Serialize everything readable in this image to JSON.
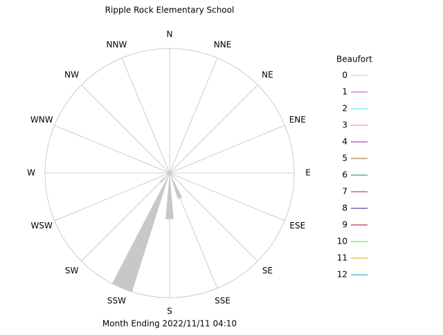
{
  "chart_data": {
    "type": "windrose",
    "title": "Ripple Rock Elementary School",
    "subtitle": "Month Ending 2022/11/11 04:10",
    "legend_title": "Beaufort",
    "categories": [
      "N",
      "NNE",
      "NE",
      "ENE",
      "E",
      "ESE",
      "SE",
      "SSE",
      "S",
      "SSW",
      "SW",
      "WSW",
      "W",
      "WNW",
      "NW",
      "NNW"
    ],
    "rlim": [
      0,
      100
    ],
    "series": [
      {
        "name": "0",
        "color": "#c8c8c8",
        "values": [
          0,
          0,
          0,
          0,
          0,
          3,
          5,
          22,
          37,
          100,
          10,
          3,
          0,
          0,
          0,
          0
        ]
      },
      {
        "name": "1",
        "color": "#c040c0",
        "values": [
          0,
          0,
          0,
          0,
          0,
          0,
          0,
          0,
          0,
          0,
          0,
          0,
          0,
          0,
          0,
          0
        ]
      },
      {
        "name": "2",
        "color": "#40e0e0",
        "values": [
          0,
          0,
          0,
          0,
          0,
          0,
          0,
          0,
          0,
          0,
          0,
          0,
          0,
          0,
          0,
          0
        ]
      },
      {
        "name": "3",
        "color": "#e080c0",
        "values": [
          0,
          0,
          0,
          0,
          0,
          0,
          0,
          0,
          0,
          0,
          0,
          0,
          0,
          0,
          0,
          0
        ]
      },
      {
        "name": "4",
        "color": "#8020a0",
        "values": [
          0,
          0,
          0,
          0,
          0,
          0,
          0,
          0,
          0,
          0,
          0,
          0,
          0,
          0,
          0,
          0
        ]
      },
      {
        "name": "5",
        "color": "#a06020",
        "values": [
          0,
          0,
          0,
          0,
          0,
          0,
          0,
          0,
          0,
          0,
          0,
          0,
          0,
          0,
          0,
          0
        ]
      },
      {
        "name": "6",
        "color": "#008080",
        "values": [
          0,
          0,
          0,
          0,
          0,
          0,
          0,
          0,
          0,
          0,
          0,
          0,
          0,
          0,
          0,
          0
        ]
      },
      {
        "name": "7",
        "color": "#a02020",
        "values": [
          0,
          0,
          0,
          0,
          0,
          0,
          0,
          0,
          0,
          0,
          0,
          0,
          0,
          0,
          0,
          0
        ]
      },
      {
        "name": "8",
        "color": "#202080",
        "values": [
          0,
          0,
          0,
          0,
          0,
          0,
          0,
          0,
          0,
          0,
          0,
          0,
          0,
          0,
          0,
          0
        ]
      },
      {
        "name": "9",
        "color": "#a00040",
        "values": [
          0,
          0,
          0,
          0,
          0,
          0,
          0,
          0,
          0,
          0,
          0,
          0,
          0,
          0,
          0,
          0
        ]
      },
      {
        "name": "10",
        "color": "#40e040",
        "values": [
          0,
          0,
          0,
          0,
          0,
          0,
          0,
          0,
          0,
          0,
          0,
          0,
          0,
          0,
          0,
          0
        ]
      },
      {
        "name": "11",
        "color": "#e0a000",
        "values": [
          0,
          0,
          0,
          0,
          0,
          0,
          0,
          0,
          0,
          0,
          0,
          0,
          0,
          0,
          0,
          0
        ]
      },
      {
        "name": "12",
        "color": "#00a0a0",
        "values": [
          0,
          0,
          0,
          0,
          0,
          0,
          0,
          0,
          0,
          0,
          0,
          0,
          0,
          0,
          0,
          0
        ]
      }
    ]
  }
}
